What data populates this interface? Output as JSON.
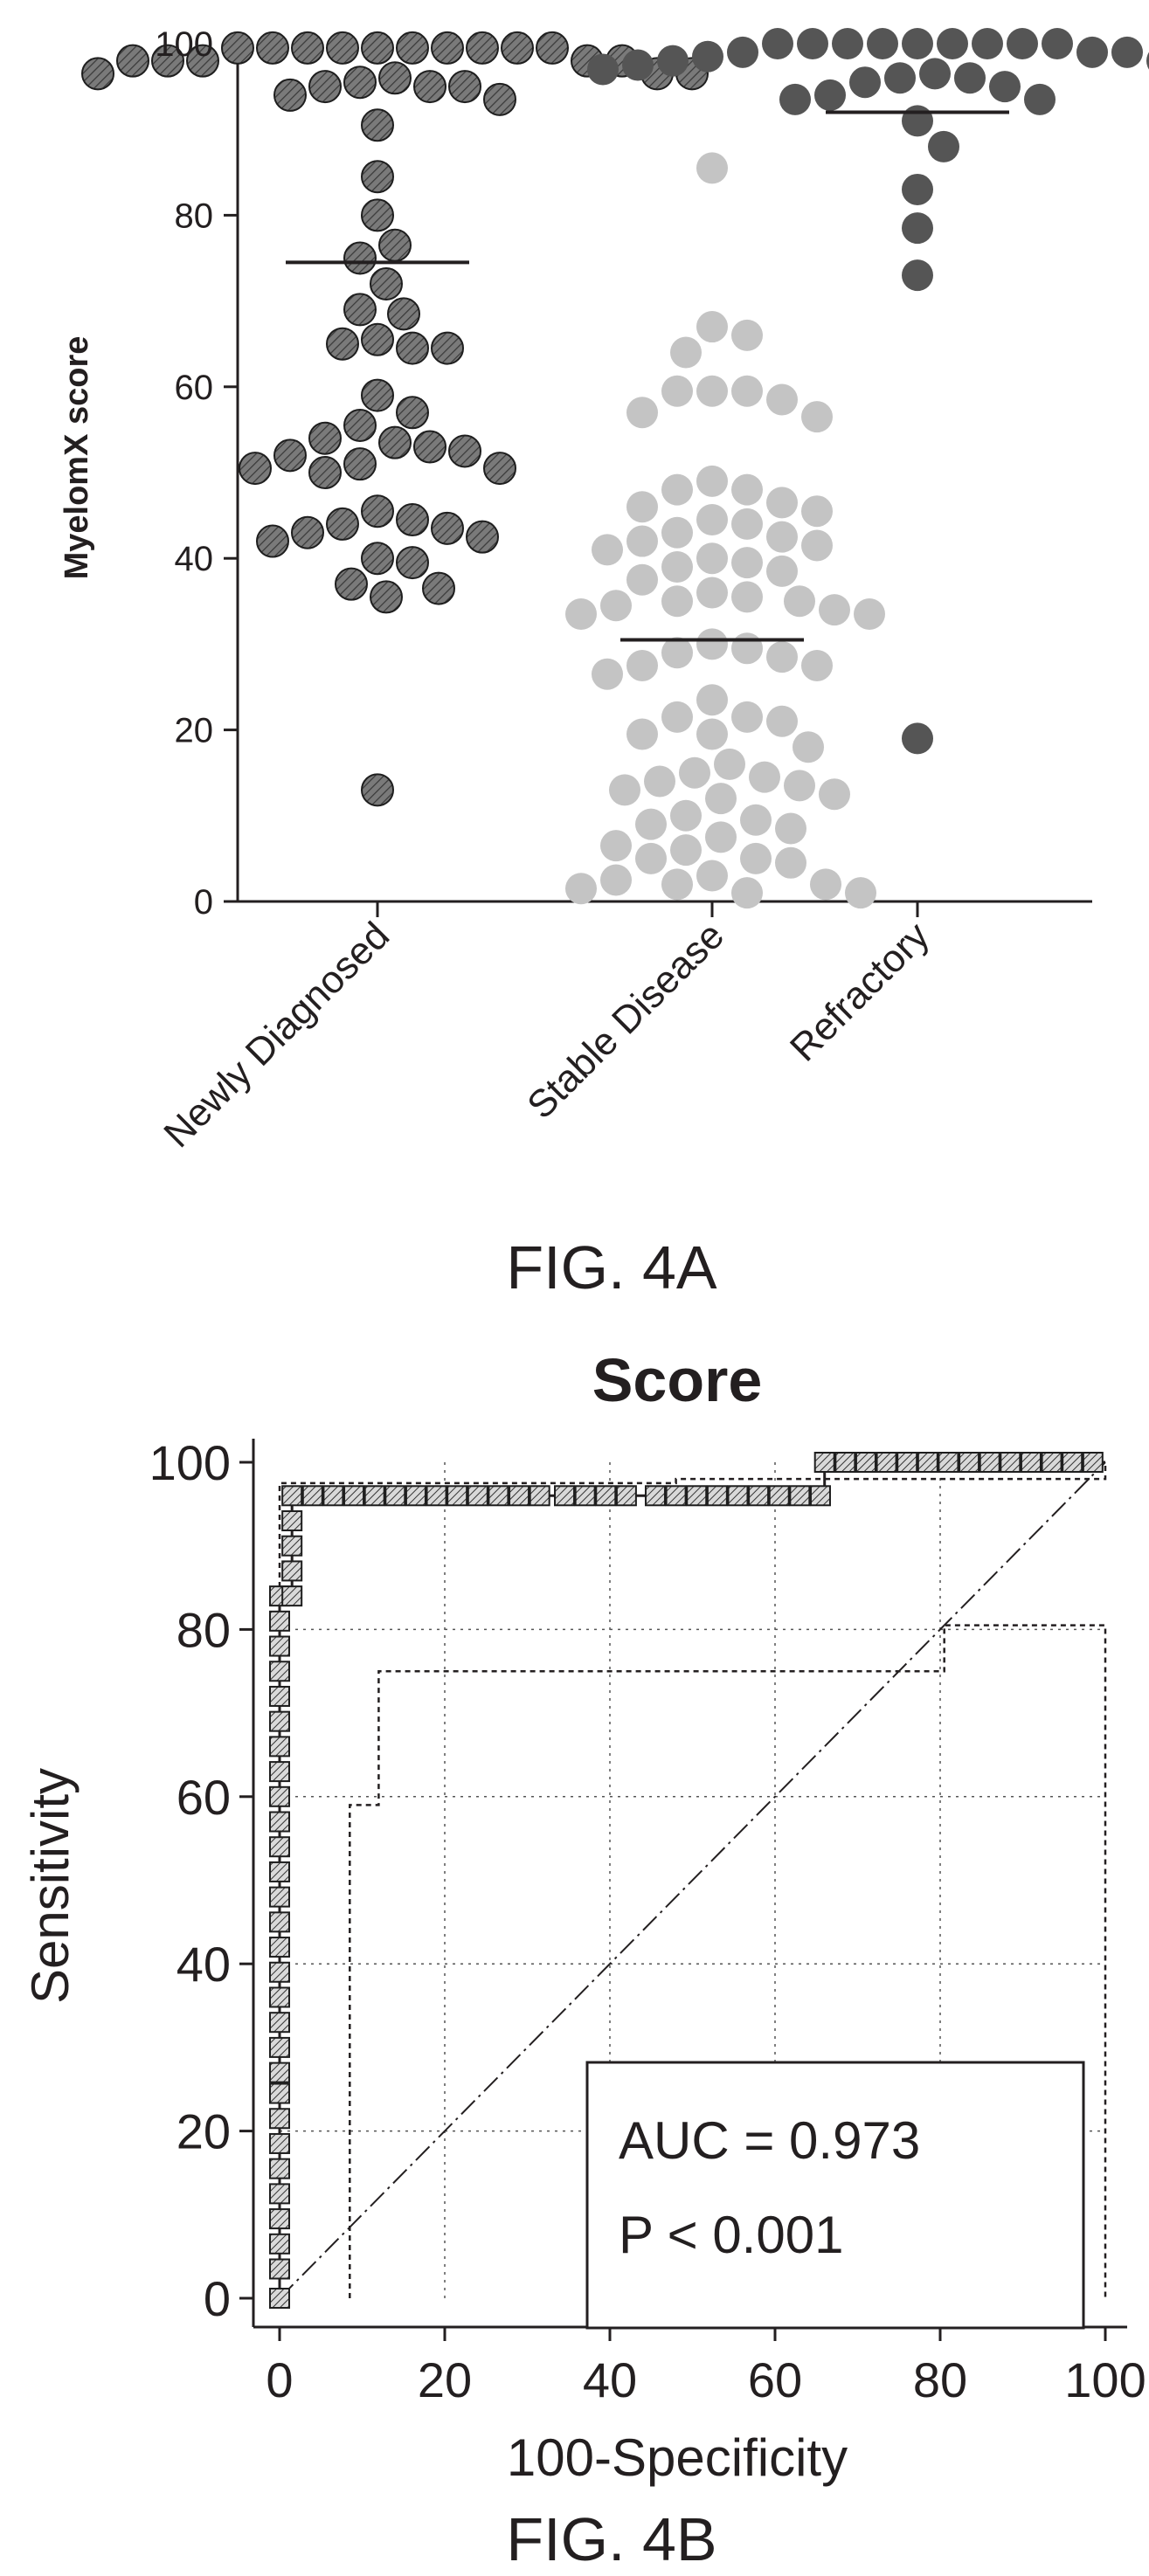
{
  "figures": {
    "fig_a_caption": "FIG. 4A",
    "fig_b_caption": "FIG. 4B"
  },
  "colors": {
    "newly_diagnosed": "#7a7a7a",
    "stable_disease": "#c4c4c4",
    "refractory": "#555555",
    "ink": "#231f20"
  },
  "chart_data": [
    {
      "type": "scatter",
      "subtype": "dot-plot-with-median",
      "ylabel": "MyelomX score",
      "xlabel": "",
      "ylim": [
        0,
        100
      ],
      "yticks": [
        0,
        20,
        40,
        60,
        80,
        100
      ],
      "categories": [
        "Newly Diagnosed",
        "Stable Disease",
        "Refractory"
      ],
      "series": [
        {
          "category": "Newly Diagnosed",
          "median": 74.5,
          "values": [
            99.5,
            99.5,
            99.5,
            99.5,
            99.5,
            99.5,
            99.5,
            99.5,
            99.5,
            99.5,
            98,
            98,
            98,
            98,
            98,
            96.5,
            96.5,
            96.5,
            96,
            95.5,
            95,
            95,
            95,
            94,
            93.5,
            90.5,
            84.5,
            80,
            76.5,
            75,
            72,
            69,
            68.5,
            65.5,
            65,
            64.5,
            64.5,
            59,
            57,
            55.5,
            54,
            53.5,
            53,
            52.5,
            52,
            51,
            50.5,
            50.5,
            50,
            45.5,
            44.5,
            44,
            43.5,
            43,
            42.5,
            42,
            40,
            39.5,
            37,
            36.5,
            35.5,
            13
          ]
        },
        {
          "category": "Stable Disease",
          "median": 30.5,
          "values": [
            85.5,
            67,
            66,
            64,
            59.5,
            59.5,
            59.5,
            58.5,
            57,
            56.5,
            49,
            48,
            48,
            46.5,
            46,
            45.5,
            44.5,
            44,
            43,
            42.5,
            42,
            41.5,
            41,
            40,
            39.5,
            39,
            38.5,
            37.5,
            36,
            35.5,
            35,
            35,
            34.5,
            34,
            33.5,
            33.5,
            30,
            29.5,
            29,
            28.5,
            27.5,
            27.5,
            26.5,
            23.5,
            21.5,
            21.5,
            21,
            19.5,
            19.5,
            18,
            16,
            15,
            14.5,
            14,
            13.5,
            13,
            12.5,
            12,
            10,
            9.5,
            9,
            8.5,
            7.5,
            6.5,
            6,
            5,
            5,
            4.5,
            3,
            2.5,
            2,
            2,
            1.5,
            1,
            1
          ]
        },
        {
          "category": "Refractory",
          "median": 92,
          "values": [
            100,
            100,
            100,
            100,
            100,
            100,
            100,
            100,
            100,
            99,
            99,
            99,
            98.5,
            98,
            98,
            98,
            97.5,
            97,
            97,
            96.5,
            96,
            96,
            95.5,
            95,
            94,
            93.5,
            93.5,
            91,
            88,
            83,
            78.5,
            73,
            19
          ]
        }
      ]
    },
    {
      "type": "line",
      "subtype": "roc-curve",
      "title": "Score",
      "xlabel": "100-Specificity",
      "ylabel": "Sensitivity",
      "xlim": [
        0,
        100
      ],
      "ylim": [
        0,
        100
      ],
      "xticks": [
        0,
        20,
        40,
        60,
        80,
        100
      ],
      "yticks": [
        0,
        20,
        40,
        60,
        80,
        100
      ],
      "grid": true,
      "annotation": {
        "auc": "AUC = 0.973",
        "p": "P < 0.001"
      },
      "roc_curve": [
        [
          0,
          0
        ],
        [
          0,
          3.5
        ],
        [
          0,
          84
        ],
        [
          1.5,
          84
        ],
        [
          1.5,
          96
        ],
        [
          66,
          96
        ],
        [
          66,
          100
        ],
        [
          100,
          100
        ]
      ],
      "marker_points": [
        [
          0,
          0
        ],
        [
          0,
          3.5
        ],
        [
          0,
          6.5
        ],
        [
          0,
          9.5
        ],
        [
          0,
          12.5
        ],
        [
          0,
          15.5
        ],
        [
          0,
          18.5
        ],
        [
          0,
          21.5
        ],
        [
          0,
          24.5
        ],
        [
          0,
          27
        ],
        [
          0,
          30
        ],
        [
          0,
          33
        ],
        [
          0,
          36
        ],
        [
          0,
          39
        ],
        [
          0,
          42
        ],
        [
          0,
          45
        ],
        [
          0,
          48
        ],
        [
          0,
          51
        ],
        [
          0,
          54
        ],
        [
          0,
          57
        ],
        [
          0,
          60
        ],
        [
          0,
          63
        ],
        [
          0,
          66
        ],
        [
          0,
          69
        ],
        [
          0,
          72
        ],
        [
          0,
          75
        ],
        [
          0,
          78
        ],
        [
          0,
          81
        ],
        [
          0,
          84
        ],
        [
          1.5,
          84
        ],
        [
          1.5,
          87
        ],
        [
          1.5,
          90
        ],
        [
          1.5,
          93
        ],
        [
          1.5,
          96
        ],
        [
          4,
          96
        ],
        [
          6.5,
          96
        ],
        [
          9,
          96
        ],
        [
          11.5,
          96
        ],
        [
          14,
          96
        ],
        [
          16.5,
          96
        ],
        [
          19,
          96
        ],
        [
          21.5,
          96
        ],
        [
          24,
          96
        ],
        [
          26.5,
          96
        ],
        [
          29,
          96
        ],
        [
          31.5,
          96
        ],
        [
          34.5,
          96
        ],
        [
          37,
          96
        ],
        [
          39.5,
          96
        ],
        [
          42,
          96
        ],
        [
          45.5,
          96
        ],
        [
          48,
          96
        ],
        [
          50.5,
          96
        ],
        [
          53,
          96
        ],
        [
          55.5,
          96
        ],
        [
          58,
          96
        ],
        [
          60.5,
          96
        ],
        [
          63,
          96
        ],
        [
          65.5,
          96
        ],
        [
          66,
          100
        ],
        [
          68.5,
          100
        ],
        [
          71,
          100
        ],
        [
          73.5,
          100
        ],
        [
          76,
          100
        ],
        [
          78.5,
          100
        ],
        [
          81,
          100
        ],
        [
          83.5,
          100
        ],
        [
          86,
          100
        ],
        [
          88.5,
          100
        ],
        [
          91,
          100
        ],
        [
          93.5,
          100
        ],
        [
          96,
          100
        ],
        [
          98.5,
          100
        ]
      ],
      "ci_upper": [
        [
          0,
          0
        ],
        [
          0,
          97.5
        ],
        [
          48,
          97.5
        ],
        [
          48,
          98
        ],
        [
          100,
          98
        ],
        [
          100,
          100
        ]
      ],
      "ci_lower": [
        [
          8.5,
          0
        ],
        [
          8.5,
          59
        ],
        [
          12,
          59
        ],
        [
          12,
          75
        ],
        [
          80.5,
          75
        ],
        [
          80.5,
          80.5
        ],
        [
          100,
          80.5
        ],
        [
          100,
          0
        ]
      ],
      "reference_line": [
        [
          0,
          0
        ],
        [
          100,
          100
        ]
      ]
    }
  ]
}
